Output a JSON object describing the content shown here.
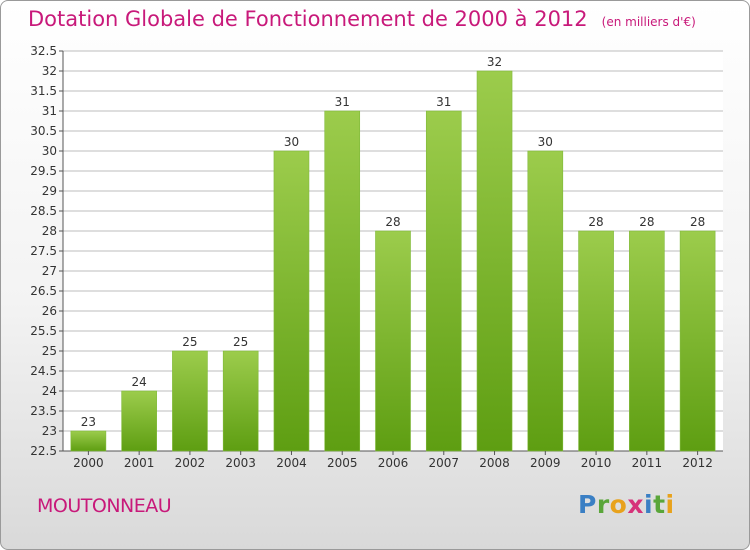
{
  "header": {
    "title": "Dotation Globale de Fonctionnement de 2000 à 2012",
    "subtitle": "(en milliers d'€)"
  },
  "footer": {
    "city": "MOUTONNEAU",
    "logo_letters": [
      {
        "char": "P",
        "color": "#3a7fc4"
      },
      {
        "char": "r",
        "color": "#5aa63a"
      },
      {
        "char": "o",
        "color": "#e8a21c"
      },
      {
        "char": "x",
        "color": "#d6337a"
      },
      {
        "char": "i",
        "color": "#3a7fc4"
      },
      {
        "char": "t",
        "color": "#5aa63a"
      },
      {
        "char": "i",
        "color": "#e8a21c"
      }
    ]
  },
  "chart_data": {
    "type": "bar",
    "categories": [
      "2000",
      "2001",
      "2002",
      "2003",
      "2004",
      "2005",
      "2006",
      "2007",
      "2008",
      "2009",
      "2010",
      "2011",
      "2012"
    ],
    "values": [
      23,
      24,
      25,
      25,
      30,
      31,
      28,
      31,
      32,
      30,
      28,
      28,
      28
    ],
    "labels": [
      "23",
      "24",
      "25",
      "25",
      "30",
      "31",
      "28",
      "31",
      "32",
      "30",
      "28",
      "28",
      "28"
    ],
    "ylim": [
      22.5,
      32.5
    ],
    "yticks": [
      "22.5",
      "23",
      "23.5",
      "24",
      "24.5",
      "25",
      "25.5",
      "26",
      "26.5",
      "27",
      "27.5",
      "28",
      "28.5",
      "29",
      "29.5",
      "30",
      "30.5",
      "31",
      "31.5",
      "32",
      "32.5"
    ],
    "grid": true,
    "bar_color_top": "#9ccc4c",
    "bar_color_bottom": "#5e9e12"
  }
}
